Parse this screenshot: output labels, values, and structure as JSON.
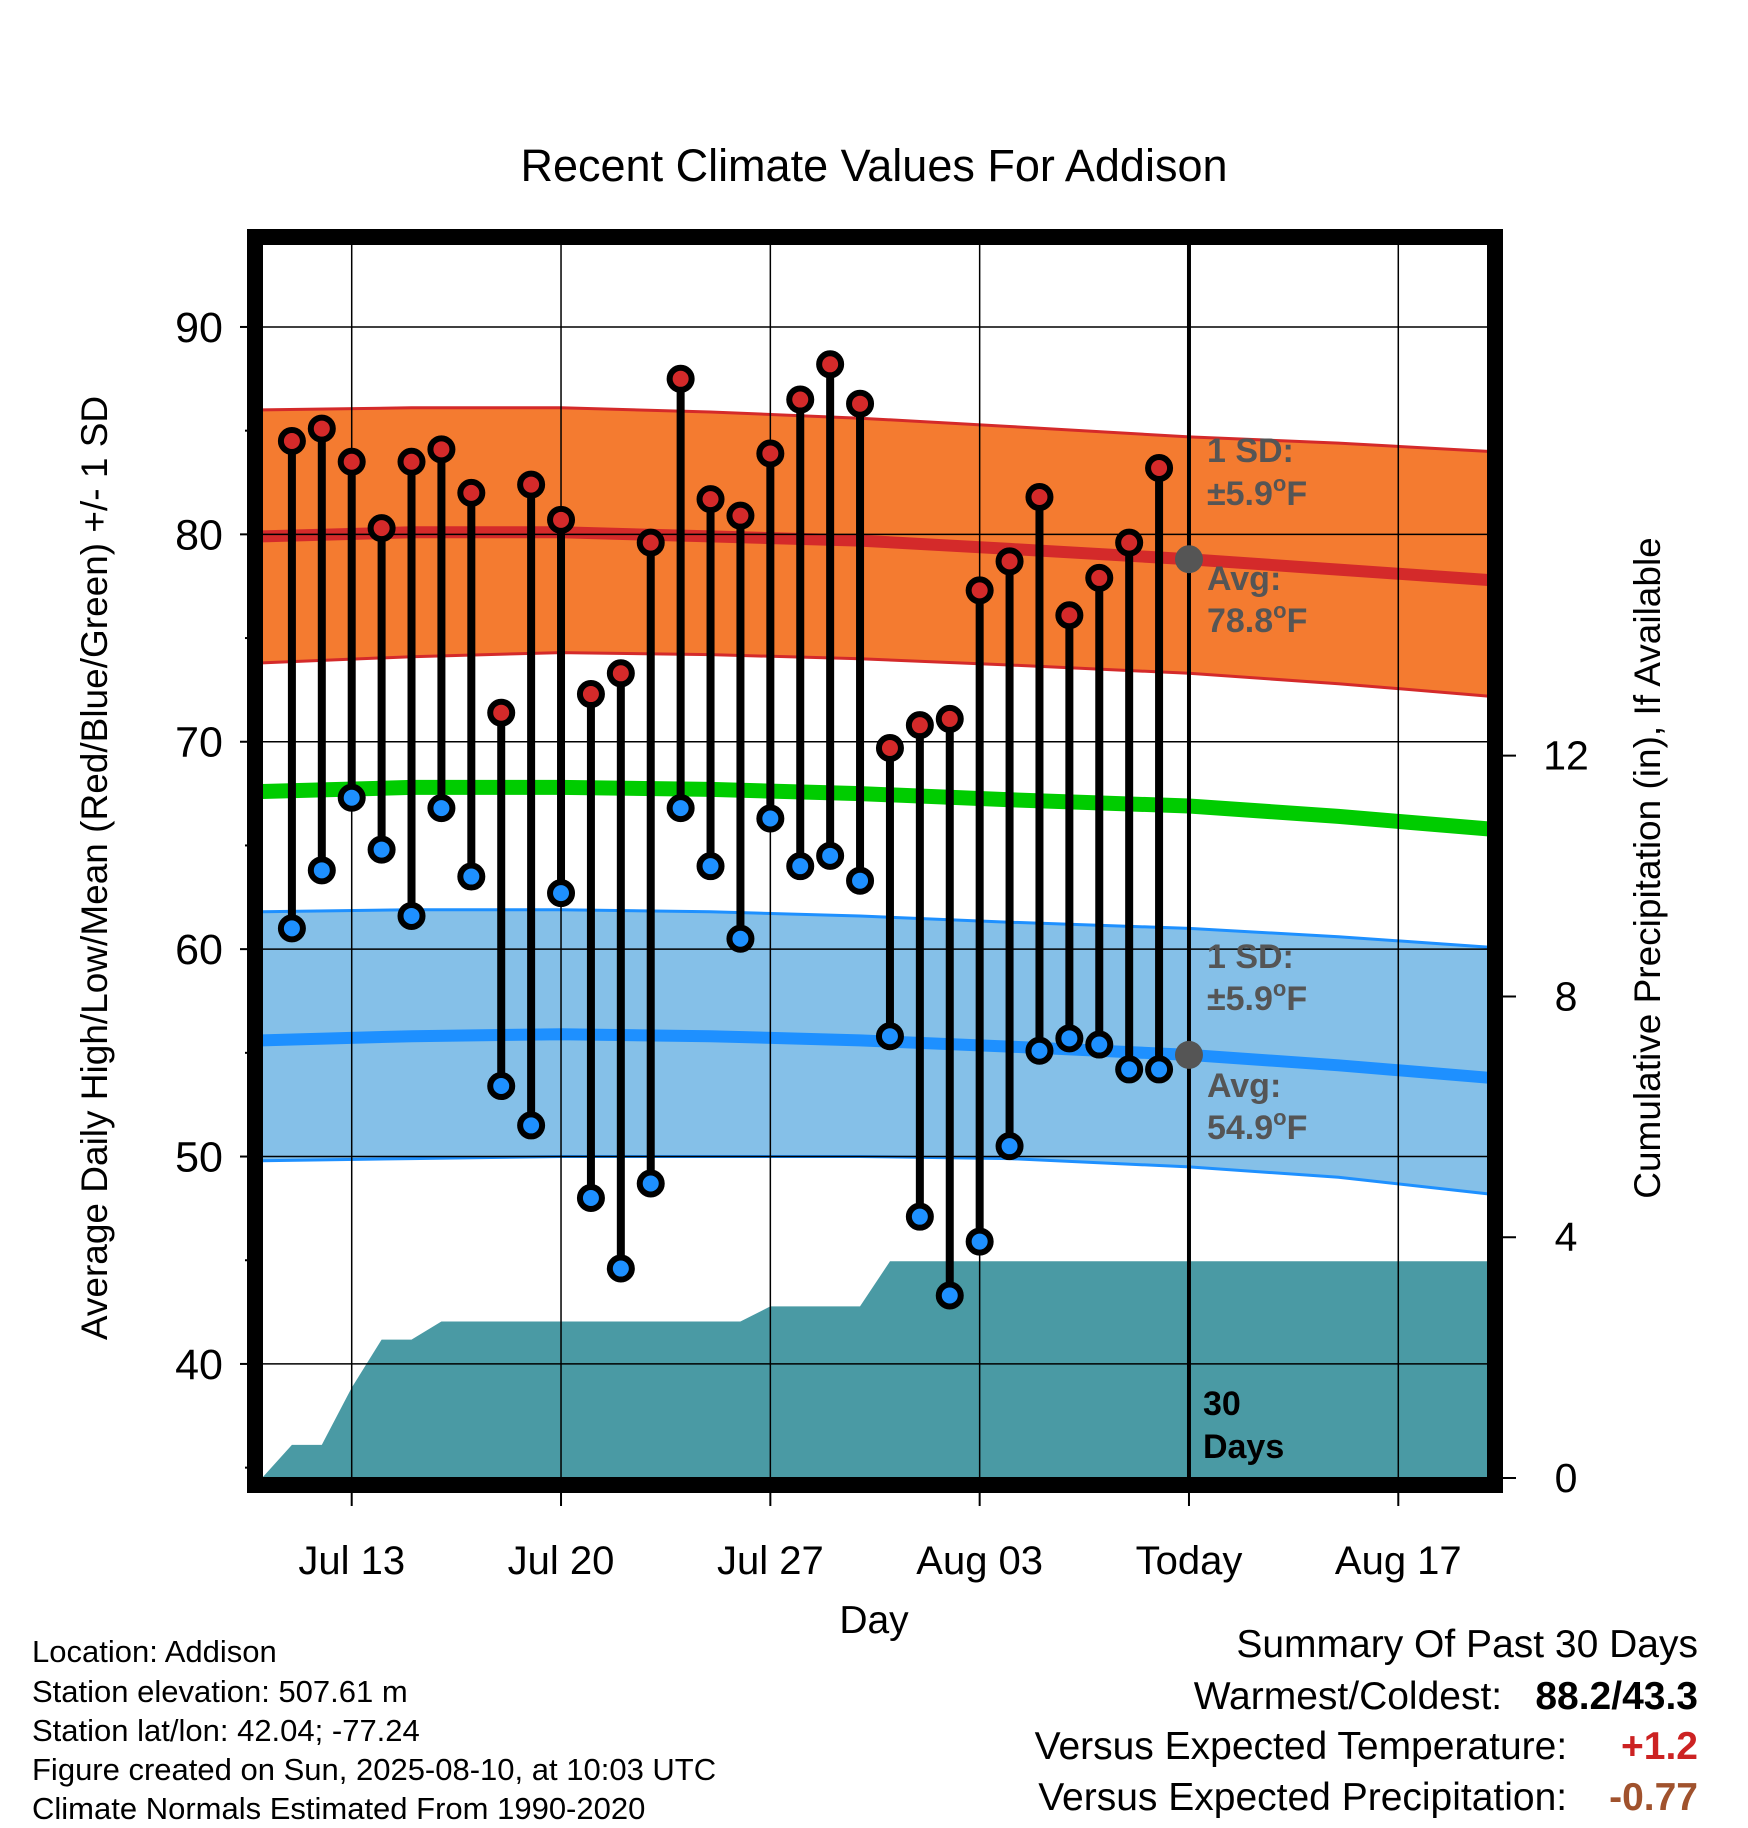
{
  "chart_data": {
    "type": "line",
    "title": "Recent Climate Values For Addison",
    "xlabel": "Day",
    "ylabel": "Average Daily High/Low/Mean (Red/Blue/Green) +/- 1 SD",
    "y2label": "Cumulative Precipitation (in), If Available",
    "ylim": [
      34.5,
      94
    ],
    "y_ticks": [
      40,
      50,
      60,
      70,
      80,
      90
    ],
    "y2lim": [
      0,
      20.5
    ],
    "y2_ticks": [
      0,
      4,
      8,
      12
    ],
    "xlim": [
      "2025-07-10",
      "2025-08-20"
    ],
    "x_ticks": [
      {
        "date": "2025-07-13",
        "label": "Jul 13"
      },
      {
        "date": "2025-07-20",
        "label": "Jul 20"
      },
      {
        "date": "2025-07-27",
        "label": "Jul 27"
      },
      {
        "date": "2025-08-03",
        "label": "Aug 03"
      },
      {
        "date": "2025-08-10",
        "label": "Today"
      },
      {
        "date": "2025-08-17",
        "label": "Aug 17"
      }
    ],
    "grid": true,
    "today": "2025-08-10",
    "window_label": "30 Days",
    "colors": {
      "high_band": "#f47b30",
      "high_line": "#d42a2a",
      "low_band": "#85c0e8",
      "low_line": "#1e90ff",
      "mean_line": "#00cc00",
      "precip": "#4a9aa4",
      "high_marker": "#d42a2a",
      "low_marker": "#1e90ff",
      "annotation": "#555555"
    },
    "normals": {
      "dates": [
        "2025-07-10",
        "2025-07-15",
        "2025-07-20",
        "2025-07-25",
        "2025-07-30",
        "2025-08-04",
        "2025-08-10",
        "2025-08-15",
        "2025-08-20"
      ],
      "high_avg": [
        79.9,
        80.1,
        80.1,
        79.9,
        79.7,
        79.3,
        78.8,
        78.3,
        77.8
      ],
      "high_upper": [
        86.0,
        86.1,
        86.1,
        85.9,
        85.6,
        85.2,
        84.7,
        84.4,
        84.0
      ],
      "high_lower": [
        73.8,
        74.1,
        74.3,
        74.2,
        74.0,
        73.7,
        73.3,
        72.8,
        72.2
      ],
      "mean_avg": [
        67.6,
        67.8,
        67.8,
        67.7,
        67.5,
        67.2,
        66.9,
        66.4,
        65.8
      ],
      "low_avg": [
        55.6,
        55.8,
        55.9,
        55.8,
        55.6,
        55.3,
        54.9,
        54.4,
        53.8
      ],
      "low_upper": [
        61.8,
        61.9,
        61.9,
        61.8,
        61.6,
        61.3,
        61.0,
        60.6,
        60.1
      ],
      "low_lower": [
        49.8,
        49.9,
        50.0,
        50.0,
        50.0,
        49.9,
        49.5,
        49.0,
        48.2
      ]
    },
    "series": [
      {
        "name": "High",
        "dates": [
          "2025-07-11",
          "2025-07-12",
          "2025-07-13",
          "2025-07-14",
          "2025-07-15",
          "2025-07-16",
          "2025-07-17",
          "2025-07-18",
          "2025-07-19",
          "2025-07-20",
          "2025-07-21",
          "2025-07-22",
          "2025-07-23",
          "2025-07-24",
          "2025-07-25",
          "2025-07-26",
          "2025-07-27",
          "2025-07-28",
          "2025-07-29",
          "2025-07-30",
          "2025-07-31",
          "2025-08-01",
          "2025-08-02",
          "2025-08-03",
          "2025-08-04",
          "2025-08-05",
          "2025-08-06",
          "2025-08-07",
          "2025-08-08",
          "2025-08-09"
        ],
        "values": [
          84.5,
          85.1,
          83.5,
          80.3,
          83.5,
          84.1,
          82.0,
          71.4,
          82.4,
          80.7,
          72.3,
          73.3,
          79.6,
          87.5,
          81.7,
          80.9,
          83.9,
          86.5,
          88.2,
          86.3,
          69.7,
          70.8,
          71.1,
          77.3,
          78.7,
          81.8,
          76.1,
          77.9,
          79.6,
          83.2
        ]
      },
      {
        "name": "Low",
        "dates": [
          "2025-07-11",
          "2025-07-12",
          "2025-07-13",
          "2025-07-14",
          "2025-07-15",
          "2025-07-16",
          "2025-07-17",
          "2025-07-18",
          "2025-07-19",
          "2025-07-20",
          "2025-07-21",
          "2025-07-22",
          "2025-07-23",
          "2025-07-24",
          "2025-07-25",
          "2025-07-26",
          "2025-07-27",
          "2025-07-28",
          "2025-07-29",
          "2025-07-30",
          "2025-07-31",
          "2025-08-01",
          "2025-08-02",
          "2025-08-03",
          "2025-08-04",
          "2025-08-05",
          "2025-08-06",
          "2025-08-07",
          "2025-08-08",
          "2025-08-09"
        ],
        "values": [
          61.0,
          63.8,
          67.3,
          64.8,
          61.6,
          66.8,
          63.5,
          53.4,
          51.5,
          62.7,
          48.0,
          44.6,
          48.7,
          66.8,
          64.0,
          60.5,
          66.3,
          64.0,
          64.5,
          63.3,
          55.8,
          47.1,
          43.3,
          45.9,
          50.5,
          55.1,
          55.7,
          55.4,
          54.2,
          54.2
        ]
      }
    ],
    "precip": {
      "dates": [
        "2025-07-10",
        "2025-07-11",
        "2025-07-12",
        "2025-07-13",
        "2025-07-14",
        "2025-07-15",
        "2025-07-16",
        "2025-07-23",
        "2025-07-24",
        "2025-07-25",
        "2025-07-26",
        "2025-07-27",
        "2025-07-30",
        "2025-07-31",
        "2025-08-20"
      ],
      "values": [
        0.0,
        0.55,
        0.55,
        1.5,
        2.3,
        2.3,
        2.6,
        2.6,
        2.6,
        2.6,
        2.6,
        2.85,
        2.85,
        3.6,
        3.6
      ]
    },
    "annotations": {
      "high_sd": "1 SD:",
      "high_sd_val": "±5.9",
      "high_avg_label": "Avg:",
      "high_avg_val": "78.8",
      "low_sd": "1 SD:",
      "low_sd_val": "±5.9",
      "low_avg_label": "Avg:",
      "low_avg_val": "54.9",
      "deg_unit": "o",
      "f_unit": "F"
    }
  },
  "info": {
    "location": "Location: Addison",
    "elevation": "Station elevation: 507.61 m",
    "latlon": "Station lat/lon: 42.04; -77.24",
    "created": "Figure created on Sun, 2025-08-10, at 10:03 UTC",
    "normals": "Climate Normals Estimated From 1990-2020"
  },
  "summary": {
    "title": "Summary Of Past 30 Days",
    "warm_cold_label": "Warmest/Coldest:",
    "warm_cold_value": "88.2/43.3",
    "temp_label": "Versus Expected Temperature:",
    "temp_value": "+1.2",
    "temp_color": "#cc2222",
    "precip_label": "Versus Expected Precipitation:",
    "precip_value": "-0.77",
    "precip_color": "#a0522d"
  }
}
